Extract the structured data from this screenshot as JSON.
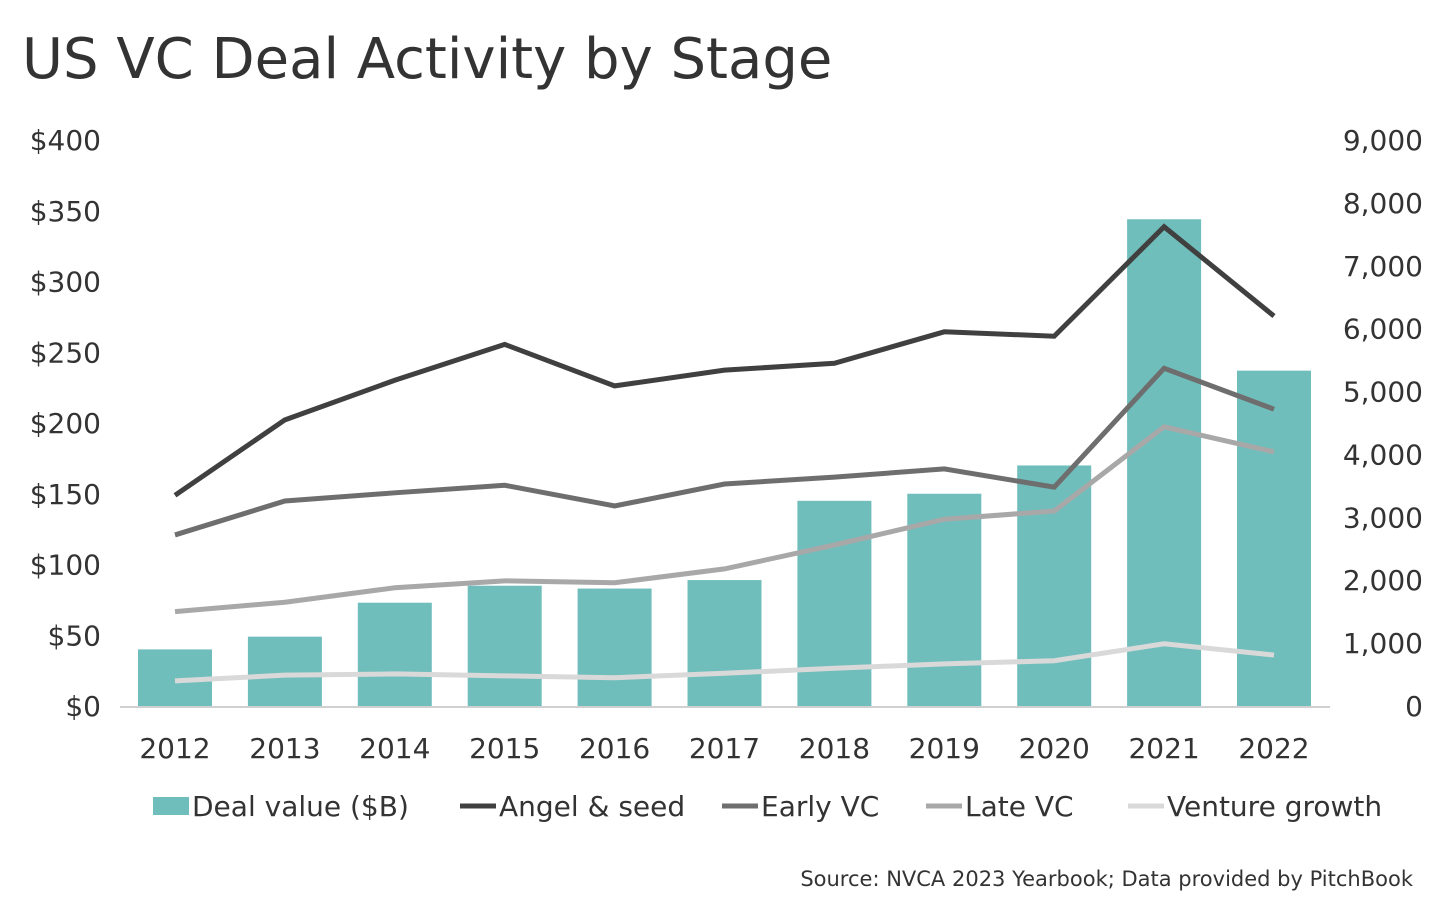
{
  "chart_data": {
    "type": "bar+line",
    "title": "US VC Deal Activity by Stage",
    "source": "Source: NVCA 2023 Yearbook; Data provided by PitchBook",
    "categories": [
      "2012",
      "2013",
      "2014",
      "2015",
      "2016",
      "2017",
      "2018",
      "2019",
      "2020",
      "2021",
      "2022"
    ],
    "left_axis": {
      "ylim": [
        0,
        400
      ],
      "ticks": [
        0,
        50,
        100,
        150,
        200,
        250,
        300,
        350,
        400
      ],
      "tick_labels": [
        "$0",
        "$50",
        "$100",
        "$150",
        "$200",
        "$250",
        "$300",
        "$350",
        "$400"
      ]
    },
    "right_axis": {
      "ylim": [
        0,
        9000
      ],
      "ticks": [
        0,
        1000,
        2000,
        3000,
        4000,
        5000,
        6000,
        7000,
        8000,
        9000
      ],
      "tick_labels": [
        "0",
        "1,000",
        "2,000",
        "3,000",
        "4,000",
        "5,000",
        "6,000",
        "7,000",
        "8,000",
        "9,000"
      ]
    },
    "grid": false,
    "legend_position": "bottom",
    "bars": {
      "name": "Deal value ($B)",
      "axis": "left",
      "color": "#70BEBC",
      "values": [
        40,
        49,
        73,
        85,
        83,
        89,
        145,
        150,
        170,
        344,
        237
      ]
    },
    "series": [
      {
        "name": "Angel & seed",
        "axis": "right",
        "color": "#404040",
        "values": [
          3350,
          4550,
          5180,
          5750,
          5090,
          5340,
          5450,
          5950,
          5880,
          7620,
          6200
        ]
      },
      {
        "name": "Early VC",
        "axis": "right",
        "color": "#6E6E6E",
        "values": [
          2720,
          3260,
          3390,
          3510,
          3180,
          3530,
          3640,
          3770,
          3480,
          5370,
          4720
        ]
      },
      {
        "name": "Late VC",
        "axis": "right",
        "color": "#A8A8A8",
        "values": [
          1500,
          1650,
          1880,
          1990,
          1960,
          2180,
          2560,
          2970,
          3100,
          4440,
          4040
        ]
      },
      {
        "name": "Venture growth",
        "axis": "right",
        "color": "#D9D9D9",
        "values": [
          400,
          490,
          510,
          480,
          450,
          520,
          600,
          670,
          720,
          990,
          810
        ]
      }
    ]
  }
}
